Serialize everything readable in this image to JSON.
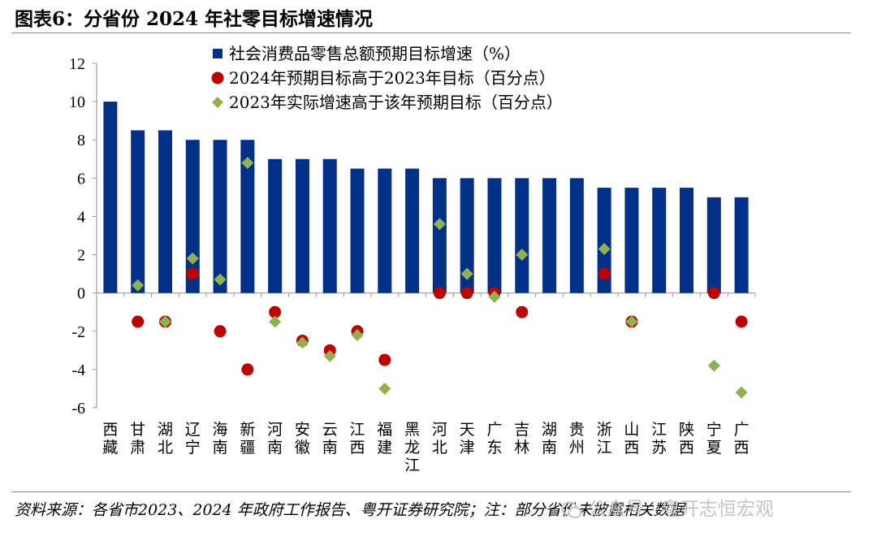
{
  "header": {
    "title": "图表6：分省份 2024 年社零目标增速情况"
  },
  "footer": {
    "source": "资料来源：各省市2023、2024 年政府工作报告、粤开证券研究院；注：部分省份未披露相关数据",
    "watermark": "公众号 · 粤开志恒宏观"
  },
  "colors": {
    "bar": "#003087",
    "dot": "#c00000",
    "diamond": "#8fb24f",
    "axis": "#999999"
  },
  "chart_data": {
    "type": "bar",
    "title": "分省份 2024 年社零目标增速情况",
    "categories": [
      "西藏",
      "甘肃",
      "湖北",
      "辽宁",
      "海南",
      "新疆",
      "河南",
      "安徽",
      "云南",
      "江西",
      "福建",
      "黑龙江",
      "河北",
      "天津",
      "广东",
      "吉林",
      "湖南",
      "贵州",
      "浙江",
      "山西",
      "江苏",
      "陕西",
      "宁夏",
      "广西"
    ],
    "ylim": [
      -6,
      12
    ],
    "yticks": [
      12,
      10,
      8,
      6,
      4,
      2,
      0,
      -2,
      -4,
      -6
    ],
    "series": [
      {
        "name": "社会消费品零售总额预期目标增速（%）",
        "kind": "bar",
        "values": [
          10,
          8.5,
          8.5,
          8,
          8,
          8,
          7,
          7,
          7,
          6.5,
          6.5,
          6.5,
          6,
          6,
          6,
          6,
          6,
          6,
          5.5,
          5.5,
          5.5,
          5.5,
          5,
          5
        ]
      },
      {
        "name": "2024年预期目标高于2023年目标（百分点）",
        "kind": "dot",
        "values": [
          null,
          -1.5,
          -1.5,
          1,
          -2,
          -4,
          -1,
          -2.5,
          -3,
          -2,
          -3.5,
          null,
          0,
          0,
          0,
          -1,
          null,
          null,
          1,
          -1.5,
          null,
          null,
          0,
          -1.5
        ]
      },
      {
        "name": "2023年实际增速高于该年预期目标（百分点）",
        "kind": "diamond",
        "values": [
          null,
          0.4,
          -1.5,
          1.8,
          0.7,
          6.8,
          -1.5,
          -2.6,
          -3.3,
          -2.2,
          -5,
          null,
          3.6,
          1,
          -0.2,
          2,
          null,
          null,
          2.3,
          -1.5,
          null,
          null,
          -3.8,
          -5.2
        ]
      }
    ],
    "legend_position": "top-left",
    "grid": false
  }
}
